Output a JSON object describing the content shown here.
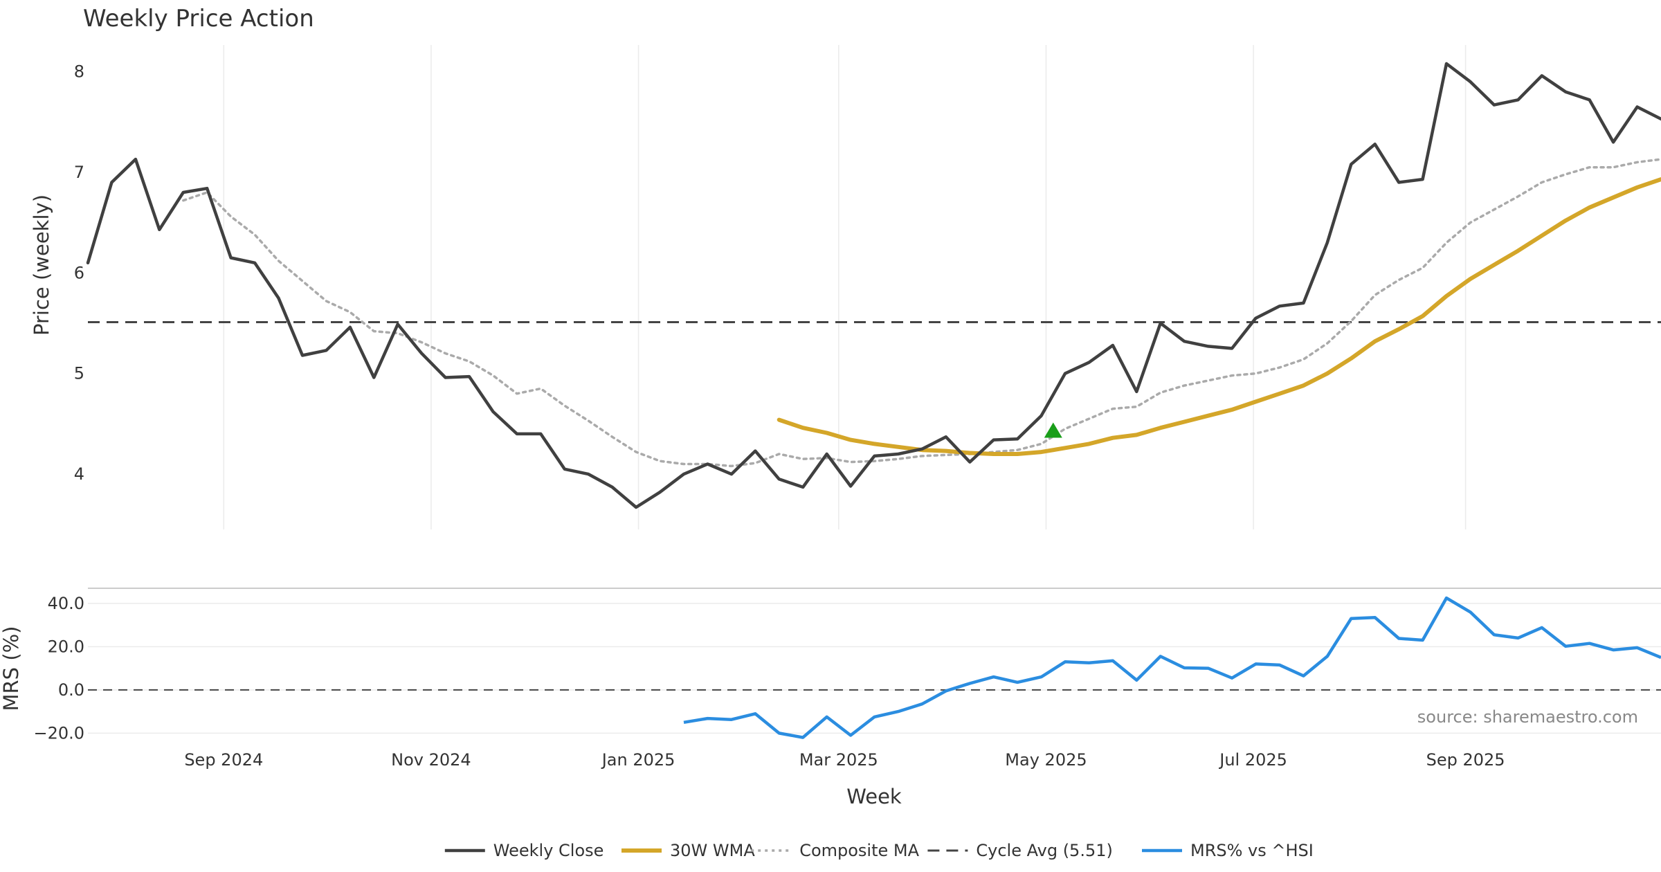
{
  "chart_data": {
    "type": "line",
    "title": "Weekly Price Action",
    "xlabel": "Week",
    "x_ticks": [
      "Sep 2024",
      "Nov 2024",
      "Jan 2025",
      "Mar 2025",
      "May 2025",
      "Jul 2025",
      "Sep 2025"
    ],
    "x_tick_weeks": [
      5.7,
      14.4,
      23.1,
      31.5,
      40.2,
      48.9,
      57.8
    ],
    "source": "source: sharemaestro.com",
    "colors": {
      "close": "#404040",
      "wma": "#d4a629",
      "composite": "#aaaaaa",
      "cycle": "#444444",
      "mrs": "#2b8de0",
      "signal": "#1a9e1a",
      "grid": "#ebebeb"
    },
    "price_panel": {
      "ylabel": "Price (weekly)",
      "ylim": [
        3.45,
        8.3
      ],
      "y_ticks": [
        4,
        5,
        6,
        7,
        8
      ],
      "cycle_avg": 5.51,
      "series": [
        {
          "key": "close",
          "name": "Weekly Close",
          "style": "solid",
          "start_week": 0,
          "values": [
            6.1,
            6.9,
            7.13,
            6.43,
            6.8,
            6.84,
            6.15,
            6.1,
            5.75,
            5.18,
            5.23,
            5.46,
            4.96,
            5.49,
            5.2,
            4.96,
            4.97,
            4.62,
            4.4,
            4.4,
            4.05,
            4.0,
            3.87,
            3.67,
            3.82,
            4.0,
            4.1,
            4.0,
            4.23,
            3.95,
            3.87,
            4.2,
            3.88,
            4.18,
            4.2,
            4.25,
            4.37,
            4.12,
            4.34,
            4.35,
            4.58,
            5.0,
            5.11,
            5.28,
            4.82,
            5.5,
            5.32,
            5.27,
            5.25,
            5.55,
            5.67,
            5.7,
            6.3,
            7.08,
            7.28,
            6.9,
            6.93,
            8.08,
            7.9,
            7.67,
            7.72,
            7.96,
            7.8,
            7.72,
            7.3,
            7.65,
            7.53
          ]
        },
        {
          "key": "wma",
          "name": "30W WMA",
          "style": "solid",
          "start_week": 29,
          "values": [
            4.54,
            4.46,
            4.41,
            4.34,
            4.3,
            4.27,
            4.24,
            4.23,
            4.21,
            4.2,
            4.2,
            4.22,
            4.26,
            4.3,
            4.36,
            4.39,
            4.46,
            4.52,
            4.58,
            4.64,
            4.72,
            4.8,
            4.88,
            5.0,
            5.15,
            5.32,
            5.44,
            5.57,
            5.77,
            5.94,
            6.08,
            6.22,
            6.37,
            6.52,
            6.65,
            6.75,
            6.85,
            6.93
          ]
        },
        {
          "key": "composite",
          "name": "Composite MA",
          "style": "dotted",
          "start_week": 4,
          "values": [
            6.72,
            6.8,
            6.56,
            6.38,
            6.12,
            5.92,
            5.72,
            5.61,
            5.42,
            5.4,
            5.31,
            5.2,
            5.12,
            4.98,
            4.8,
            4.85,
            4.68,
            4.53,
            4.37,
            4.22,
            4.13,
            4.1,
            4.1,
            4.08,
            4.11,
            4.2,
            4.15,
            4.16,
            4.12,
            4.13,
            4.15,
            4.18,
            4.19,
            4.2,
            4.22,
            4.24,
            4.3,
            4.45,
            4.55,
            4.65,
            4.67,
            4.81,
            4.88,
            4.93,
            4.98,
            5.0,
            5.06,
            5.14,
            5.3,
            5.52,
            5.78,
            5.93,
            6.05,
            6.3,
            6.5,
            6.63,
            6.76,
            6.9,
            6.98,
            7.05,
            7.05,
            7.1,
            7.13
          ]
        }
      ],
      "signal": {
        "name": "buy-signal",
        "week": 40.5,
        "value": 4.43
      }
    },
    "mrs_panel": {
      "ylabel": "MRS (%)",
      "ylim": [
        -25,
        47
      ],
      "y_ticks": [
        -20,
        0,
        20,
        40
      ],
      "y_tick_labels": [
        "−20.0",
        "0.0",
        "20.0",
        "40.0"
      ],
      "zero_line": 0,
      "series": [
        {
          "key": "mrs",
          "name": "MRS% vs ^HSI",
          "style": "solid",
          "start_week": 25,
          "values": [
            -15.0,
            -13.2,
            -13.7,
            -11.0,
            -20.0,
            -22.0,
            -12.5,
            -21.0,
            -12.5,
            -10.0,
            -6.5,
            -0.5,
            3.0,
            6.0,
            3.5,
            6.0,
            13.0,
            12.5,
            13.5,
            4.5,
            15.5,
            10.2,
            10.0,
            5.5,
            12.0,
            11.5,
            6.5,
            15.5,
            33.0,
            33.5,
            23.8,
            23.0,
            42.5,
            36.0,
            25.5,
            24.0,
            28.8,
            20.2,
            21.5,
            18.5,
            19.5,
            15.0
          ]
        }
      ]
    },
    "legend": [
      {
        "key": "close",
        "label": "Weekly Close",
        "style": "solid"
      },
      {
        "key": "wma",
        "label": "30W WMA",
        "style": "solid"
      },
      {
        "key": "composite",
        "label": "Composite MA",
        "style": "dotted"
      },
      {
        "key": "cycle",
        "label": "Cycle Avg (5.51)",
        "style": "dashed"
      },
      {
        "key": "mrs",
        "label": "MRS% vs ^HSI",
        "style": "solid"
      }
    ]
  }
}
